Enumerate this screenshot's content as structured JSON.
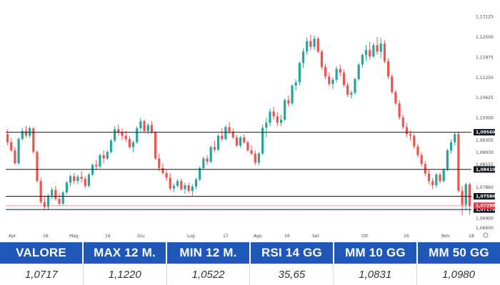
{
  "chart_data": {
    "type": "candlestick",
    "x_labels": [
      "Apr",
      "16",
      "Mag",
      "16",
      "Giu",
      "Lug",
      "17",
      "Ago",
      "16",
      "Set",
      "Ott",
      "16",
      "Nov",
      "18"
    ],
    "y_ticks": [
      "1,13125",
      "1,12500",
      "1,11875",
      "1,11250",
      "1,10625",
      "1,10000",
      "1,09305",
      "1,08930",
      "1,08555",
      "1,07860",
      "1,06900",
      "1,06600"
    ],
    "ylim": [
      1.066,
      1.1325
    ],
    "levels": [
      {
        "value": 1.0956,
        "label": "1,09560",
        "color": "#131722"
      },
      {
        "value": 1.0841,
        "label": "1,08410",
        "color": "#131722"
      },
      {
        "value": 1.0758,
        "label": "1,07580",
        "color": "#131722"
      },
      {
        "value": 1.0717,
        "label": "1,07170",
        "color": "#131722"
      }
    ],
    "last_price": {
      "value": 1.0729,
      "label": "1,07290",
      "color": "#e53946"
    },
    "colors": {
      "up": "#26a69a",
      "down": "#ef5350"
    },
    "series": [
      {
        "name": "",
        "ohlc": [
          [
            1.095,
            1.0965,
            1.0915,
            1.0925
          ],
          [
            1.0925,
            1.0938,
            1.0895,
            1.09
          ],
          [
            1.09,
            1.091,
            1.0855,
            1.086
          ],
          [
            1.086,
            1.094,
            1.0855,
            1.0935
          ],
          [
            1.0935,
            1.097,
            1.093,
            1.096
          ],
          [
            1.096,
            1.0975,
            1.094,
            1.0945
          ],
          [
            1.0945,
            1.0975,
            1.0938,
            1.0968
          ],
          [
            1.0968,
            1.0972,
            1.089,
            1.0895
          ],
          [
            1.0895,
            1.09,
            1.08,
            1.0805
          ],
          [
            1.0805,
            1.0815,
            1.0735,
            1.074
          ],
          [
            1.074,
            1.076,
            1.0715,
            1.0725
          ],
          [
            1.0725,
            1.0765,
            1.0715,
            1.076
          ],
          [
            1.076,
            1.0785,
            1.075,
            1.0778
          ],
          [
            1.0778,
            1.079,
            1.0745,
            1.075
          ],
          [
            1.075,
            1.0768,
            1.0728,
            1.0735
          ],
          [
            1.0735,
            1.0775,
            1.073,
            1.077
          ],
          [
            1.077,
            1.0805,
            1.0765,
            1.08
          ],
          [
            1.08,
            1.0825,
            1.079,
            1.082
          ],
          [
            1.082,
            1.083,
            1.0795,
            1.0805
          ],
          [
            1.0805,
            1.0825,
            1.0795,
            1.0818
          ],
          [
            1.0818,
            1.0835,
            1.08,
            1.0812
          ],
          [
            1.0812,
            1.082,
            1.0782,
            1.079
          ],
          [
            1.079,
            1.083,
            1.0785,
            1.0825
          ],
          [
            1.0825,
            1.086,
            1.082,
            1.0855
          ],
          [
            1.0855,
            1.087,
            1.084,
            1.085
          ],
          [
            1.085,
            1.089,
            1.0845,
            1.0885
          ],
          [
            1.0885,
            1.09,
            1.086,
            1.0875
          ],
          [
            1.0875,
            1.09,
            1.087,
            1.0895
          ],
          [
            1.0895,
            1.0935,
            1.089,
            1.093
          ],
          [
            1.093,
            1.0975,
            1.0925,
            1.0965
          ],
          [
            1.0965,
            1.098,
            1.0945,
            1.0955
          ],
          [
            1.0955,
            1.0968,
            1.093,
            1.0945
          ],
          [
            1.0945,
            1.096,
            1.0925,
            1.0935
          ],
          [
            1.0935,
            1.0945,
            1.0905,
            1.091
          ],
          [
            1.091,
            1.093,
            1.0895,
            1.0925
          ],
          [
            1.0925,
            1.0975,
            1.092,
            1.0968
          ],
          [
            1.0968,
            1.1,
            1.096,
            1.099
          ],
          [
            1.099,
            1.0995,
            1.0955,
            1.096
          ],
          [
            1.096,
            1.0985,
            1.095,
            1.0978
          ],
          [
            1.0978,
            1.099,
            1.095,
            1.0955
          ],
          [
            1.0955,
            1.096,
            1.087,
            1.0875
          ],
          [
            1.0875,
            1.089,
            1.0835,
            1.0845
          ],
          [
            1.0845,
            1.086,
            1.0825,
            1.083
          ],
          [
            1.083,
            1.084,
            1.0805,
            1.0815
          ],
          [
            1.0815,
            1.083,
            1.0775,
            1.0782
          ],
          [
            1.0782,
            1.0798,
            1.077,
            1.079
          ],
          [
            1.079,
            1.0812,
            1.0785,
            1.0805
          ],
          [
            1.0805,
            1.0812,
            1.0775,
            1.078
          ],
          [
            1.078,
            1.08,
            1.0765,
            1.0792
          ],
          [
            1.0792,
            1.08,
            1.0768,
            1.0775
          ],
          [
            1.0775,
            1.0795,
            1.076,
            1.0788
          ],
          [
            1.0788,
            1.0815,
            1.078,
            1.081
          ],
          [
            1.081,
            1.085,
            1.0805,
            1.0845
          ],
          [
            1.0845,
            1.088,
            1.084,
            1.0875
          ],
          [
            1.0875,
            1.0885,
            1.0855,
            1.0865
          ],
          [
            1.0865,
            1.0915,
            1.086,
            1.091
          ],
          [
            1.091,
            1.093,
            1.0895,
            1.0902
          ],
          [
            1.0902,
            1.095,
            1.0898,
            1.0945
          ],
          [
            1.0945,
            1.0968,
            1.0928,
            1.0935
          ],
          [
            1.0935,
            1.0978,
            1.093,
            1.0972
          ],
          [
            1.0972,
            1.0988,
            1.095,
            1.0958
          ],
          [
            1.0958,
            1.0968,
            1.0935,
            1.094
          ],
          [
            1.094,
            1.0948,
            1.091,
            1.0915
          ],
          [
            1.0915,
            1.0945,
            1.0908,
            1.094
          ],
          [
            1.094,
            1.095,
            1.092,
            1.0925
          ],
          [
            1.0925,
            1.093,
            1.0895,
            1.09
          ],
          [
            1.09,
            1.0915,
            1.0885,
            1.089
          ],
          [
            1.089,
            1.09,
            1.0855,
            1.0862
          ],
          [
            1.0862,
            1.0895,
            1.0855,
            1.089
          ],
          [
            1.089,
            1.098,
            1.0885,
            1.097
          ],
          [
            1.097,
            1.1,
            1.094,
            1.0985
          ],
          [
            1.0985,
            1.103,
            1.0975,
            1.102
          ],
          [
            1.102,
            1.1035,
            1.0995,
            1.1005
          ],
          [
            1.1005,
            1.1018,
            1.0975,
            1.0985
          ],
          [
            1.0985,
            1.101,
            1.0975,
            1.0995
          ],
          [
            1.0995,
            1.106,
            1.099,
            1.1055
          ],
          [
            1.1055,
            1.107,
            1.1035,
            1.1045
          ],
          [
            1.1045,
            1.1105,
            1.104,
            1.11
          ],
          [
            1.11,
            1.112,
            1.1085,
            1.111
          ],
          [
            1.111,
            1.1175,
            1.11,
            1.117
          ],
          [
            1.117,
            1.1215,
            1.1155,
            1.1205
          ],
          [
            1.1205,
            1.125,
            1.1195,
            1.1238
          ],
          [
            1.1238,
            1.1258,
            1.121,
            1.122
          ],
          [
            1.122,
            1.1255,
            1.121,
            1.1245
          ],
          [
            1.1245,
            1.125,
            1.12,
            1.1205
          ],
          [
            1.1205,
            1.1212,
            1.115,
            1.1158
          ],
          [
            1.1158,
            1.1168,
            1.112,
            1.1128
          ],
          [
            1.1128,
            1.114,
            1.1098,
            1.1105
          ],
          [
            1.1105,
            1.1125,
            1.109,
            1.1118
          ],
          [
            1.1118,
            1.116,
            1.111,
            1.1152
          ],
          [
            1.1152,
            1.1165,
            1.113,
            1.114
          ],
          [
            1.114,
            1.115,
            1.1095,
            1.1102
          ],
          [
            1.1102,
            1.111,
            1.1065,
            1.1072
          ],
          [
            1.1072,
            1.1085,
            1.106,
            1.1078
          ],
          [
            1.1078,
            1.1125,
            1.1072,
            1.112
          ],
          [
            1.112,
            1.117,
            1.1115,
            1.1165
          ],
          [
            1.1165,
            1.12,
            1.1155,
            1.1195
          ],
          [
            1.1195,
            1.1225,
            1.1175,
            1.121
          ],
          [
            1.121,
            1.1235,
            1.118,
            1.119
          ],
          [
            1.119,
            1.1232,
            1.1185,
            1.1225
          ],
          [
            1.1225,
            1.125,
            1.1195,
            1.1205
          ],
          [
            1.1205,
            1.1248,
            1.1185,
            1.123
          ],
          [
            1.123,
            1.124,
            1.117,
            1.1175
          ],
          [
            1.1175,
            1.1185,
            1.112,
            1.1128
          ],
          [
            1.1128,
            1.1135,
            1.1075,
            1.108
          ],
          [
            1.108,
            1.1088,
            1.104,
            1.1045
          ],
          [
            1.1045,
            1.1055,
            1.0995,
            1.1002
          ],
          [
            1.1002,
            1.101,
            1.0965,
            1.0972
          ],
          [
            1.0972,
            1.0985,
            1.094,
            1.095
          ],
          [
            1.095,
            1.0962,
            1.093,
            1.0945
          ],
          [
            1.0945,
            1.0952,
            1.0905,
            1.0912
          ],
          [
            1.0912,
            1.092,
            1.0878,
            1.0885
          ],
          [
            1.0885,
            1.0895,
            1.085,
            1.0858
          ],
          [
            1.0858,
            1.0868,
            1.082,
            1.0828
          ],
          [
            1.0828,
            1.084,
            1.0795,
            1.0805
          ],
          [
            1.0805,
            1.0815,
            1.078,
            1.0792
          ],
          [
            1.0792,
            1.083,
            1.0785,
            1.0825
          ],
          [
            1.0825,
            1.0832,
            1.0798,
            1.0805
          ],
          [
            1.0805,
            1.0845,
            1.08,
            1.084
          ],
          [
            1.084,
            1.0905,
            1.0835,
            1.09
          ],
          [
            1.09,
            1.0935,
            1.089,
            1.0925
          ],
          [
            1.0925,
            1.0955,
            1.0915,
            1.095
          ],
          [
            1.095,
            1.0958,
            1.077,
            1.0775
          ],
          [
            1.0775,
            1.079,
            1.07,
            1.0732
          ],
          [
            1.0732,
            1.08,
            1.0715,
            1.0795
          ],
          [
            1.0795,
            1.08,
            1.07,
            1.0729
          ]
        ]
      }
    ]
  },
  "stats": {
    "headers": [
      "VALORE",
      "MAX 12 M.",
      "MIN 12 M.",
      "RSI 14 GG",
      "MM 10 GG",
      "MM 50 GG"
    ],
    "values": [
      "1,0717",
      "1,1220",
      "1,0522",
      "35,65",
      "1,0831",
      "1,0980"
    ]
  }
}
